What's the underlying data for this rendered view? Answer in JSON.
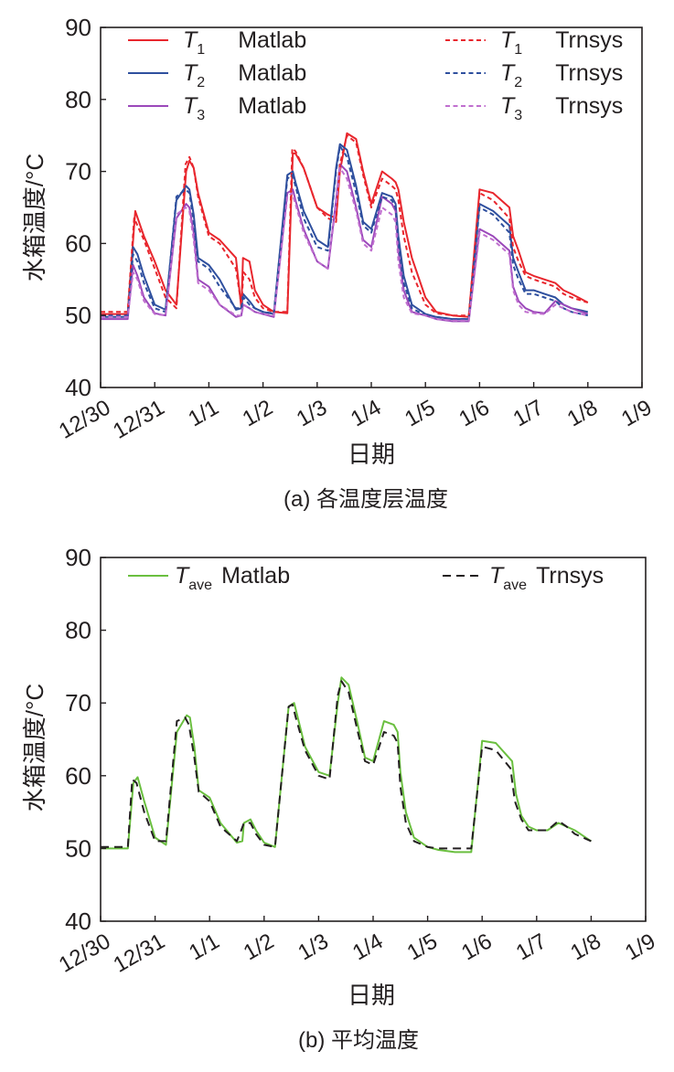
{
  "figure": {
    "captions": [
      "(a) 各温度层温度",
      "(b) 平均温度"
    ]
  },
  "chart_data": [
    {
      "type": "line",
      "title": "(a) 各温度层温度",
      "xlabel": "日期",
      "ylabel": "水箱温度/°C",
      "ylim": [
        40,
        90
      ],
      "yticks": [
        "40",
        "50",
        "60",
        "70",
        "80",
        "90"
      ],
      "xlim": [
        0,
        10
      ],
      "xtick_labels": [
        "12/30",
        "12/31",
        "1/1",
        "1/2",
        "1/3",
        "1/4",
        "1/5",
        "1/6",
        "1/7",
        "1/8",
        "1/9"
      ],
      "legend_position": "top",
      "series": [
        {
          "name": "T1 Matlab",
          "label_main": "T",
          "label_sub": "1",
          "label_suffix": "Matlab",
          "color": "#e8262d",
          "style": "solid",
          "x": [
            0,
            0.5,
            0.64,
            0.8,
            1.0,
            1.2,
            1.4,
            1.58,
            1.64,
            1.72,
            1.8,
            2.0,
            2.2,
            2.5,
            2.6,
            2.63,
            2.75,
            2.85,
            3.0,
            3.2,
            3.45,
            3.55,
            3.6,
            3.75,
            4.0,
            4.2,
            4.35,
            4.42,
            4.55,
            4.72,
            4.85,
            5.0,
            5.2,
            5.38,
            5.45,
            5.5,
            5.6,
            5.75,
            6.0,
            6.2,
            6.5,
            6.8,
            7.0,
            7.25,
            7.55,
            7.62,
            7.72,
            7.85,
            8.0,
            8.2,
            8.4,
            8.55,
            8.7,
            9.0
          ],
          "y": [
            50.2,
            50.2,
            64.5,
            61.0,
            57.5,
            53.5,
            51.5,
            70.0,
            71.5,
            70.5,
            67.0,
            61.5,
            60.5,
            58.0,
            51.0,
            58.0,
            57.5,
            53.5,
            51.5,
            50.5,
            50.3,
            72.5,
            72.5,
            70.5,
            65.0,
            64.0,
            63.5,
            70.0,
            75.3,
            74.5,
            70.0,
            65.5,
            70.0,
            69.0,
            68.5,
            67.5,
            63.0,
            58.0,
            52.5,
            50.5,
            50.0,
            49.8,
            67.5,
            67.0,
            65.0,
            61.0,
            59.0,
            56.0,
            55.5,
            55.0,
            54.5,
            53.5,
            53.0,
            51.8
          ]
        },
        {
          "name": "T2 Matlab",
          "label_main": "T",
          "label_sub": "2",
          "label_suffix": "Matlab",
          "color": "#2e4f9e",
          "style": "solid",
          "x": [
            0,
            0.5,
            0.6,
            0.68,
            0.8,
            1.0,
            1.2,
            1.4,
            1.58,
            1.64,
            1.72,
            1.8,
            2.0,
            2.2,
            2.5,
            2.6,
            2.63,
            2.75,
            2.85,
            3.0,
            3.2,
            3.45,
            3.55,
            3.6,
            3.75,
            4.0,
            4.2,
            4.35,
            4.42,
            4.55,
            4.72,
            4.85,
            5.0,
            5.2,
            5.38,
            5.45,
            5.5,
            5.6,
            5.75,
            6.0,
            6.2,
            6.5,
            6.8,
            7.0,
            7.25,
            7.55,
            7.62,
            7.72,
            7.85,
            8.0,
            8.2,
            8.4,
            8.55,
            8.7,
            9.0
          ],
          "y": [
            49.8,
            49.8,
            59.5,
            58.5,
            55.5,
            51.5,
            50.8,
            66.0,
            68.0,
            67.5,
            64.0,
            58.0,
            57.0,
            55.0,
            50.8,
            51.0,
            53.0,
            52.0,
            51.0,
            50.5,
            50.2,
            69.5,
            70.0,
            68.5,
            64.5,
            60.5,
            59.5,
            70.5,
            73.8,
            73.0,
            68.0,
            63.0,
            62.0,
            67.0,
            66.5,
            65.5,
            61.0,
            55.5,
            51.5,
            50.2,
            49.8,
            49.5,
            49.5,
            65.5,
            64.5,
            62.5,
            58.0,
            56.0,
            53.5,
            53.5,
            53.0,
            52.5,
            51.5,
            51.0,
            50.5
          ]
        },
        {
          "name": "T3 Matlab",
          "label_main": "T",
          "label_sub": "3",
          "label_suffix": "Matlab",
          "color": "#9b48ba",
          "style": "solid",
          "x": [
            0,
            0.5,
            0.6,
            0.68,
            0.8,
            1.0,
            1.2,
            1.4,
            1.58,
            1.64,
            1.72,
            1.8,
            2.0,
            2.2,
            2.5,
            2.6,
            2.63,
            2.75,
            2.85,
            3.0,
            3.2,
            3.45,
            3.55,
            3.6,
            3.75,
            4.0,
            4.2,
            4.35,
            4.42,
            4.55,
            4.72,
            4.85,
            5.0,
            5.2,
            5.38,
            5.45,
            5.5,
            5.6,
            5.75,
            6.0,
            6.2,
            6.5,
            6.8,
            7.0,
            7.25,
            7.55,
            7.62,
            7.72,
            7.85,
            8.0,
            8.2,
            8.4,
            8.55,
            8.7,
            9.0
          ],
          "y": [
            49.5,
            49.5,
            57.0,
            55.5,
            52.5,
            50.3,
            50.0,
            63.5,
            65.5,
            65.0,
            61.5,
            55.0,
            54.0,
            51.5,
            49.8,
            50.0,
            51.5,
            51.0,
            50.5,
            50.2,
            49.8,
            67.0,
            67.5,
            66.0,
            62.0,
            57.5,
            56.5,
            66.0,
            71.0,
            70.0,
            65.0,
            60.5,
            59.5,
            66.5,
            65.5,
            64.5,
            59.0,
            53.5,
            50.5,
            50.0,
            49.5,
            49.2,
            49.2,
            62.0,
            61.0,
            59.0,
            54.0,
            52.0,
            51.0,
            50.5,
            50.3,
            52.0,
            51.5,
            51.0,
            50.2
          ]
        },
        {
          "name": "T1 Trnsys",
          "label_main": "T",
          "label_sub": "1",
          "label_suffix": "Trnsys",
          "color": "#e8262d",
          "style": "dashed",
          "x": [
            0,
            0.5,
            0.62,
            0.8,
            1.0,
            1.2,
            1.4,
            1.57,
            1.64,
            1.72,
            1.8,
            2.0,
            2.2,
            2.5,
            2.6,
            2.64,
            2.75,
            2.85,
            3.0,
            3.2,
            3.45,
            3.54,
            3.6,
            3.75,
            4.0,
            4.2,
            4.35,
            4.42,
            4.55,
            4.72,
            4.85,
            5.0,
            5.2,
            5.38,
            5.45,
            5.5,
            5.6,
            5.75,
            6.0,
            6.2,
            6.5,
            6.8,
            7.0,
            7.25,
            7.55,
            7.62,
            7.72,
            7.85,
            8.0,
            8.2,
            8.4,
            8.55,
            8.7,
            9.0
          ],
          "y": [
            50.5,
            50.5,
            63.5,
            60.5,
            56.5,
            52.5,
            51.0,
            71.0,
            72.0,
            70.5,
            66.5,
            61.0,
            60.0,
            56.5,
            51.5,
            56.0,
            55.0,
            52.5,
            51.0,
            50.5,
            50.5,
            73.2,
            72.8,
            70.5,
            65.0,
            63.5,
            63.0,
            71.0,
            75.0,
            74.0,
            69.5,
            65.0,
            69.0,
            68.0,
            67.5,
            66.0,
            61.0,
            56.0,
            51.5,
            50.3,
            50.0,
            50.0,
            67.0,
            66.0,
            63.5,
            59.5,
            57.5,
            55.5,
            55.0,
            54.5,
            54.0,
            53.0,
            52.5,
            51.8
          ]
        },
        {
          "name": "T2 Trnsys",
          "label_main": "T",
          "label_sub": "2",
          "label_suffix": "Trnsys",
          "color": "#2e4f9e",
          "style": "dashed",
          "x": [
            0,
            0.5,
            0.6,
            0.68,
            0.8,
            1.0,
            1.2,
            1.4,
            1.57,
            1.64,
            1.72,
            1.8,
            2.0,
            2.2,
            2.5,
            2.6,
            2.64,
            2.75,
            2.85,
            3.0,
            3.2,
            3.45,
            3.54,
            3.6,
            3.75,
            4.0,
            4.2,
            4.35,
            4.42,
            4.55,
            4.72,
            4.85,
            5.0,
            5.2,
            5.38,
            5.45,
            5.5,
            5.6,
            5.75,
            6.0,
            6.2,
            6.5,
            6.8,
            7.0,
            7.25,
            7.55,
            7.62,
            7.72,
            7.85,
            8.0,
            8.2,
            8.4,
            8.55,
            8.7,
            9.0
          ],
          "y": [
            50.0,
            50.0,
            58.5,
            57.5,
            54.5,
            51.0,
            50.5,
            66.5,
            67.5,
            67.0,
            63.0,
            57.5,
            56.5,
            54.0,
            51.0,
            51.0,
            52.5,
            51.5,
            51.0,
            50.5,
            50.3,
            69.0,
            69.5,
            68.0,
            63.5,
            59.5,
            59.0,
            70.0,
            73.5,
            72.0,
            67.0,
            62.5,
            61.5,
            66.5,
            66.0,
            65.0,
            60.0,
            54.5,
            51.0,
            50.0,
            49.8,
            49.5,
            49.5,
            65.0,
            64.0,
            61.5,
            57.0,
            55.0,
            53.0,
            53.0,
            52.5,
            52.0,
            51.0,
            50.5,
            50.0
          ]
        },
        {
          "name": "T3 Trnsys",
          "label_main": "T",
          "label_sub": "3",
          "label_suffix": "Trnsys",
          "color": "#c06fcf",
          "style": "dashed",
          "x": [
            0,
            0.5,
            0.6,
            0.68,
            0.8,
            1.0,
            1.2,
            1.4,
            1.57,
            1.64,
            1.72,
            1.8,
            2.0,
            2.2,
            2.5,
            2.6,
            2.64,
            2.75,
            2.85,
            3.0,
            3.2,
            3.45,
            3.54,
            3.6,
            3.75,
            4.0,
            4.2,
            4.35,
            4.42,
            4.55,
            4.72,
            4.85,
            5.0,
            5.2,
            5.38,
            5.45,
            5.5,
            5.6,
            5.75,
            6.0,
            6.2,
            6.5,
            6.8,
            7.0,
            7.25,
            7.55,
            7.62,
            7.72,
            7.85,
            8.0,
            8.2,
            8.4,
            8.55,
            8.7,
            9.0
          ],
          "y": [
            49.8,
            49.8,
            56.0,
            55.0,
            52.0,
            50.2,
            50.0,
            64.0,
            65.0,
            64.5,
            60.5,
            54.5,
            53.5,
            51.5,
            50.0,
            50.0,
            51.5,
            51.0,
            50.5,
            50.2,
            50.0,
            66.5,
            67.0,
            65.5,
            61.5,
            57.5,
            56.5,
            65.5,
            70.5,
            69.0,
            64.5,
            60.0,
            59.0,
            65.0,
            64.0,
            63.0,
            57.5,
            52.5,
            50.3,
            50.0,
            49.5,
            49.3,
            49.3,
            61.5,
            60.5,
            58.5,
            53.5,
            51.5,
            50.5,
            50.3,
            50.2,
            51.5,
            51.0,
            50.5,
            50.0
          ]
        }
      ]
    },
    {
      "type": "line",
      "title": "(b) 平均温度",
      "xlabel": "日期",
      "ylabel": "水箱温度/°C",
      "ylim": [
        40,
        90
      ],
      "yticks": [
        "40",
        "50",
        "60",
        "70",
        "80",
        "90"
      ],
      "xlim": [
        0,
        10
      ],
      "xtick_labels": [
        "12/30",
        "12/31",
        "1/1",
        "1/2",
        "1/3",
        "1/4",
        "1/5",
        "1/6",
        "1/7",
        "1/8",
        "1/9"
      ],
      "legend_position": "top",
      "series": [
        {
          "name": "Tave Matlab",
          "label_main": "T",
          "label_sub": "ave",
          "label_suffix": "Matlab",
          "color": "#6abf3f",
          "style": "solid",
          "x": [
            0,
            0.5,
            0.6,
            0.68,
            0.8,
            1.0,
            1.2,
            1.4,
            1.58,
            1.64,
            1.72,
            1.8,
            2.0,
            2.2,
            2.5,
            2.6,
            2.63,
            2.75,
            2.85,
            3.0,
            3.2,
            3.45,
            3.55,
            3.6,
            3.75,
            4.0,
            4.2,
            4.35,
            4.42,
            4.55,
            4.72,
            4.85,
            5.0,
            5.2,
            5.38,
            5.45,
            5.5,
            5.6,
            5.75,
            6.0,
            6.2,
            6.5,
            6.8,
            7.0,
            7.25,
            7.55,
            7.62,
            7.72,
            7.85,
            8.0,
            8.2,
            8.4,
            8.55,
            8.7,
            9.0
          ],
          "y": [
            50.0,
            50.0,
            59.0,
            59.8,
            56.5,
            51.5,
            50.5,
            66.0,
            68.3,
            68.0,
            64.0,
            58.0,
            57.0,
            53.5,
            50.8,
            51.0,
            53.5,
            54.0,
            52.5,
            50.8,
            50.2,
            69.5,
            70.0,
            68.5,
            64.0,
            60.5,
            60.0,
            70.0,
            73.5,
            72.5,
            67.0,
            62.5,
            62.0,
            67.5,
            67.0,
            66.0,
            60.5,
            55.0,
            51.5,
            50.2,
            49.8,
            49.5,
            49.5,
            64.8,
            64.5,
            62.0,
            57.5,
            54.5,
            53.0,
            52.5,
            52.5,
            53.5,
            53.0,
            52.5,
            51.0
          ]
        },
        {
          "name": "Tave Trnsys",
          "label_main": "T",
          "label_sub": "ave",
          "label_suffix": "Trnsys",
          "color": "#231f20",
          "style": "dashed",
          "x": [
            0,
            0.5,
            0.58,
            0.66,
            0.8,
            1.0,
            1.2,
            1.4,
            1.55,
            1.62,
            1.72,
            1.8,
            2.0,
            2.2,
            2.5,
            2.58,
            2.63,
            2.75,
            2.85,
            3.0,
            3.2,
            3.45,
            3.52,
            3.58,
            3.75,
            4.0,
            4.2,
            4.35,
            4.42,
            4.55,
            4.72,
            4.85,
            5.0,
            5.2,
            5.38,
            5.45,
            5.5,
            5.6,
            5.75,
            6.0,
            6.2,
            6.5,
            6.8,
            7.0,
            7.25,
            7.52,
            7.6,
            7.72,
            7.85,
            8.0,
            8.2,
            8.4,
            8.55,
            8.7,
            9.0
          ],
          "y": [
            50.2,
            50.2,
            59.5,
            59.0,
            55.0,
            51.0,
            51.0,
            67.5,
            68.0,
            67.0,
            62.5,
            57.8,
            56.5,
            53.0,
            51.0,
            52.5,
            53.5,
            53.5,
            52.0,
            50.5,
            50.2,
            69.5,
            69.8,
            68.0,
            63.5,
            60.0,
            59.5,
            71.0,
            73.0,
            71.5,
            66.0,
            62.0,
            61.5,
            66.0,
            65.5,
            64.5,
            58.5,
            53.5,
            51.0,
            50.2,
            50.0,
            50.0,
            50.0,
            64.0,
            63.5,
            61.0,
            56.5,
            54.0,
            52.5,
            52.5,
            52.5,
            53.8,
            53.0,
            52.0,
            51.0
          ]
        }
      ]
    }
  ]
}
